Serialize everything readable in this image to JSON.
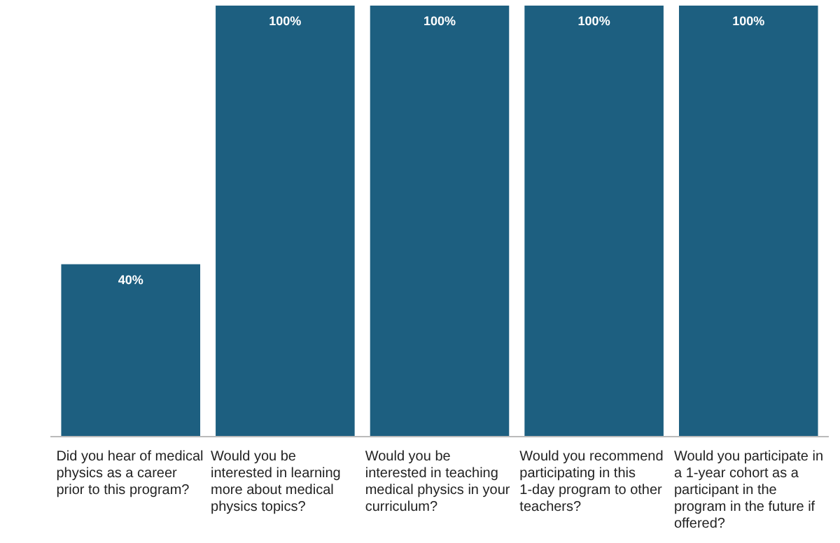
{
  "chart_data": {
    "type": "bar",
    "categories": [
      "Did you hear of medical physics as a career prior to this program?",
      "Would you be interested in learning more about medical physics topics?",
      "Would you be interested in teaching medical physics in your curriculum?",
      "Would you recommend participating in this 1-day program to other teachers?",
      "Would you participate in a 1-year cohort as a participant in the program in the future if offered?"
    ],
    "values": [
      40,
      100,
      100,
      100,
      100
    ],
    "value_labels": [
      "40%",
      "100%",
      "100%",
      "100%",
      "100%"
    ],
    "color": "#1d5f80"
  }
}
